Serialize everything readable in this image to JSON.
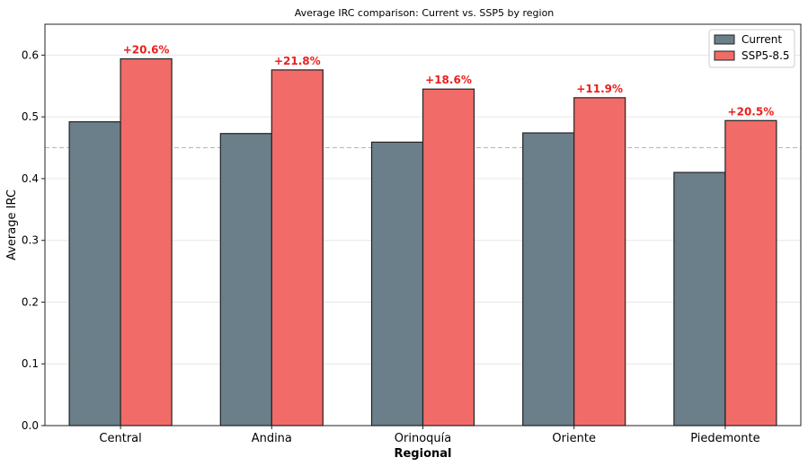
{
  "chart_data": {
    "type": "bar",
    "title": "Average IRC comparison: Current vs. SSP5 by region",
    "xlabel": "Regional",
    "ylabel": "Average IRC",
    "categories": [
      "Central",
      "Andina",
      "Orinoquía",
      "Oriente",
      "Piedemonte"
    ],
    "series": [
      {
        "name": "Current",
        "values": [
          0.492,
          0.473,
          0.459,
          0.474,
          0.41
        ],
        "color": "#6b7f8a"
      },
      {
        "name": "SSP5-8.5",
        "values": [
          0.594,
          0.576,
          0.545,
          0.531,
          0.494
        ],
        "color": "#f16b68"
      }
    ],
    "annotations": [
      "+20.6%",
      "+21.8%",
      "+18.6%",
      "+11.9%",
      "+20.5%"
    ],
    "annotation_color": "#e8201e",
    "ylim": [
      0,
      0.65
    ],
    "yticks": [
      "0.0",
      "0.1",
      "0.2",
      "0.3",
      "0.4",
      "0.5",
      "0.6"
    ],
    "reference_line": 0.45,
    "grid": "horizontal",
    "legend_position": "top-right"
  }
}
